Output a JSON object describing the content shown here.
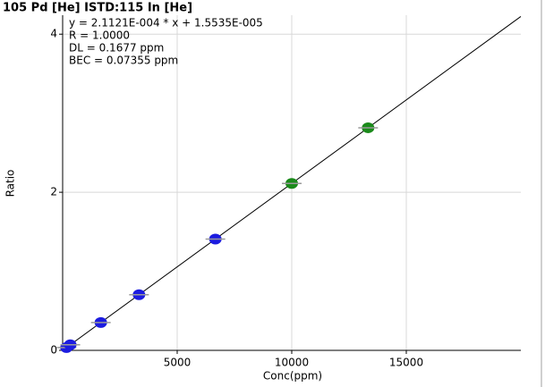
{
  "chart_data": {
    "type": "scatter",
    "title": "105 Pd [He] ISTD:115 In [He]",
    "annotations": [
      "y = 2.1121E-004 * x + 1.5535E-005",
      "R =  1.0000",
      "DL = 0.1677 ppm",
      "BEC = 0.07355 ppm"
    ],
    "xlabel": "Conc(ppm)",
    "ylabel": "Ratio",
    "x": [
      166.7,
      333.3,
      1666.7,
      3333.3,
      6666.7,
      10000,
      13333.3
    ],
    "values": [
      0.0352,
      0.0704,
      0.352,
      0.704,
      1.408,
      2.112,
      2.816
    ],
    "point_colors": [
      "#1c1ce0",
      "#1c1ce0",
      "#1c1ce0",
      "#1c1ce0",
      "#1c1ce0",
      "#1a8a1a",
      "#1a8a1a"
    ],
    "xlim": [
      0,
      20000
    ],
    "ylim": [
      0,
      4.24
    ],
    "xticks": [
      5000,
      10000,
      15000
    ],
    "yticks": [
      0,
      2,
      4
    ],
    "grid": true
  }
}
